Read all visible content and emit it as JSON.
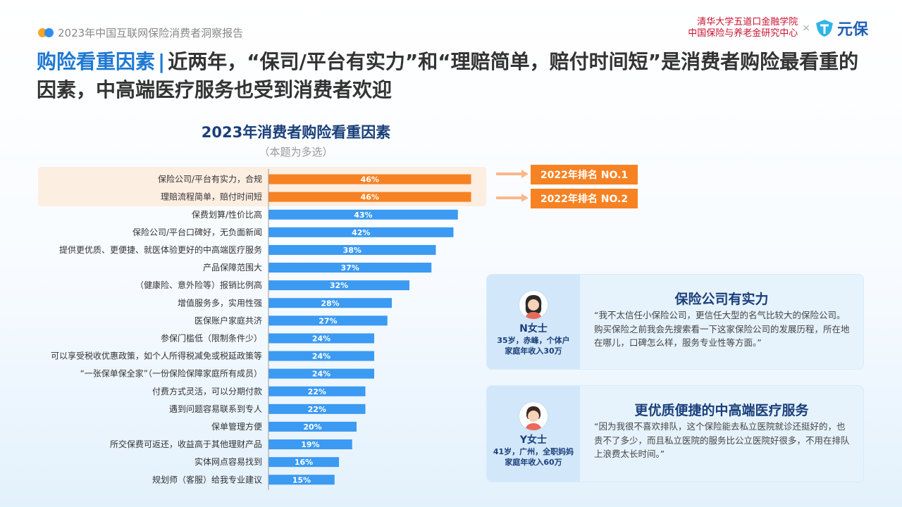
{
  "report": {
    "title": "2023年中国互联网保险消费者洞察报告"
  },
  "brand": {
    "institute_line1": "清华大学五道口金融学院",
    "institute_line2": "中国保险与养老金研究中心",
    "separator": "×",
    "name": "元保"
  },
  "headline": {
    "topic": "购险看重因素",
    "separator": "|",
    "text": "近两年，“保司/平台有实力”和“理赔简单，赔付时间短”是消费者购险最看重的因素，中高端医疗服务也受到消费者欢迎"
  },
  "chart_data": {
    "type": "bar",
    "orientation": "horizontal",
    "title": "2023年消费者购险看重因素",
    "subtitle": "（本题为多选）",
    "categories": [
      "保险公司/平台有实力，合规",
      "理赔流程简单，赔付时间短",
      "保费划算/性价比高",
      "保险公司/平台口碑好，无负面新闻",
      "提供更优质、更便捷、就医体验更好的中高端医疗服务",
      "产品保障范围大",
      "（健康险、意外险等）报销比例高",
      "增值服务多，实用性强",
      "医保账户家庭共济",
      "参保门槛低（限制条件少）",
      "可以享受税收优惠政策，如个人所得税减免或税延政策等",
      "“一张保单保全家”（一份保险保障家庭所有成员）",
      "付费方式灵活，可以分期付款",
      "遇到问题容易联系到专人",
      "保单管理方便",
      "所交保费可返还，收益高于其他理财产品",
      "实体网点容易找到",
      "规划师（客服）给我专业建议"
    ],
    "values": [
      46,
      46,
      43,
      42,
      38,
      37,
      32,
      28,
      27,
      24,
      24,
      24,
      22,
      22,
      20,
      19,
      16,
      15
    ],
    "value_labels": [
      "46%",
      "46%",
      "43%",
      "42%",
      "38%",
      "37%",
      "32%",
      "28%",
      "27%",
      "24%",
      "24%",
      "24%",
      "22%",
      "22%",
      "20%",
      "19%",
      "16%",
      "15%"
    ],
    "highlighted_count": 2,
    "colors": {
      "highlight": "#f68223",
      "normal": "#3b9af2"
    }
  },
  "rank_badges": [
    "2022年排名 NO.1",
    "2022年排名 NO.2"
  ],
  "quotes": [
    {
      "persona_name": "N女士",
      "persona_info_line1": "35岁，赤峰，个体户",
      "persona_info_line2": "家庭年收入30万",
      "title": "保险公司有实力",
      "text": "“我不太信任小保险公司，更信任大型的名气比较大的保险公司。购买保险之前我会先搜索看一下这家保险公司的发展历程，所在地在哪儿，口碑怎么样，服务专业性等方面。”"
    },
    {
      "persona_name": "Y女士",
      "persona_info_line1": "41岁，广州，全职妈妈",
      "persona_info_line2": "家庭年收入60万",
      "title": "更优质便捷的中高端医疗服务",
      "text": "“因为我很不喜欢排队，这个保险能去私立医院就诊还挺好的，也贵不了多少，而且私立医院的服务比公立医院好很多，不用在排队上浪费太长时间。”"
    }
  ],
  "colors": {
    "brand_red": "#c8102e",
    "accent_blue": "#1e78d2",
    "title_navy": "#1a3f7a",
    "badge_orange": "#f68223"
  }
}
